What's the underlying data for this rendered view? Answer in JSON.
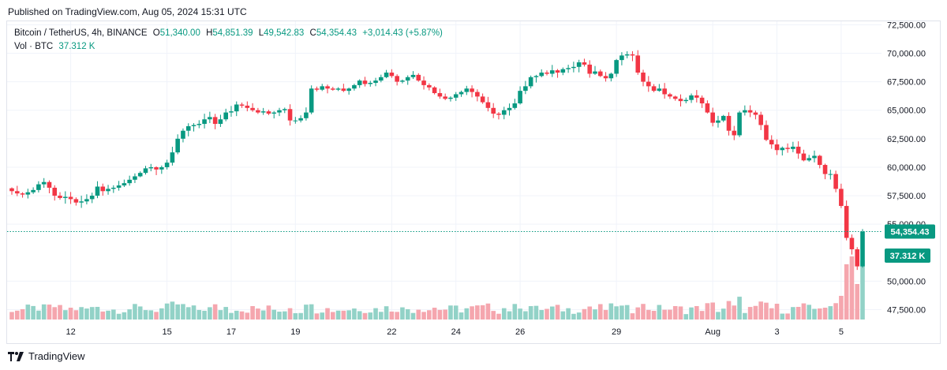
{
  "header": {
    "published": "Published on TradingView.com, Aug 05, 2024 15:31 UTC"
  },
  "legend": {
    "symbol": "Bitcoin / TetherUS, 4h, BINANCE",
    "open_label": "O",
    "open": "51,340.00",
    "high_label": "H",
    "high": "54,851.39",
    "low_label": "L",
    "low": "49,542.83",
    "close_label": "C",
    "close": "54,354.43",
    "change": "+3,014.43 (+5.87%)",
    "volume_label": "Vol · BTC",
    "volume": "37.312 K"
  },
  "footer": {
    "brand": "TradingView"
  },
  "colors": {
    "up": "#089981",
    "down": "#f23645",
    "up_vol": "#92d2c7",
    "down_vol": "#f5a6ae",
    "grid": "#f0f3fa",
    "text": "#131722"
  },
  "chart_data": {
    "type": "candlestick",
    "symbol": "BTC/USDT",
    "interval": "4h",
    "ylim": [
      46500,
      72800
    ],
    "y_ticks": [
      "72,500.00",
      "70,000.00",
      "67,500.00",
      "65,000.00",
      "62,500.00",
      "60,000.00",
      "57,500.00",
      "55,000.00",
      "50,000.00",
      "47,500.00"
    ],
    "x_ticks": [
      {
        "label": "12",
        "bar": 11
      },
      {
        "label": "15",
        "bar": 29
      },
      {
        "label": "17",
        "bar": 41
      },
      {
        "label": "19",
        "bar": 53
      },
      {
        "label": "22",
        "bar": 71
      },
      {
        "label": "24",
        "bar": 83
      },
      {
        "label": "26",
        "bar": 95
      },
      {
        "label": "29",
        "bar": 113
      },
      {
        "label": "Aug",
        "bar": 131
      },
      {
        "label": "3",
        "bar": 143
      },
      {
        "label": "5",
        "bar": 155
      }
    ],
    "last_price": {
      "value": 54354.43,
      "label": "54,354.43"
    },
    "last_volume": {
      "value": 37312,
      "label": "37.312 K"
    },
    "close": [
      57900,
      57700,
      57600,
      57800,
      58000,
      58500,
      58700,
      58200,
      57500,
      57300,
      57400,
      57200,
      56900,
      57000,
      57200,
      57500,
      58300,
      57900,
      58100,
      58200,
      58400,
      58600,
      58900,
      59200,
      59500,
      59900,
      60000,
      59800,
      60000,
      60400,
      61300,
      62500,
      63200,
      63600,
      63700,
      63800,
      64200,
      64400,
      63800,
      64200,
      64800,
      64900,
      65500,
      65400,
      65200,
      65000,
      64800,
      64900,
      64700,
      64800,
      65000,
      65100,
      64100,
      64100,
      64300,
      64800,
      66900,
      66800,
      67100,
      66900,
      66800,
      66900,
      66700,
      66900,
      67200,
      67600,
      67300,
      67400,
      67600,
      67900,
      68300,
      68000,
      67500,
      67600,
      67900,
      68100,
      67600,
      67200,
      67000,
      66500,
      66200,
      66000,
      66100,
      66400,
      66600,
      66900,
      66600,
      66200,
      65700,
      65200,
      64700,
      64600,
      65000,
      65200,
      65600,
      66700,
      67100,
      67900,
      68000,
      68300,
      68200,
      68500,
      68300,
      68600,
      68700,
      68800,
      69200,
      69000,
      68200,
      68400,
      68000,
      67800,
      68200,
      69400,
      69800,
      69900,
      69800,
      68300,
      67500,
      67100,
      66700,
      66900,
      66400,
      66200,
      66000,
      65800,
      65900,
      66300,
      66100,
      65600,
      64800,
      63900,
      64100,
      64500,
      63200,
      62800,
      64800,
      65000,
      64800,
      64600,
      63700,
      62400,
      62000,
      61500,
      61700,
      61600,
      61800,
      61200,
      60600,
      60800,
      61000,
      60200,
      59400,
      59400,
      58100,
      56600,
      53800,
      52800,
      51300,
      54354
    ]
  }
}
